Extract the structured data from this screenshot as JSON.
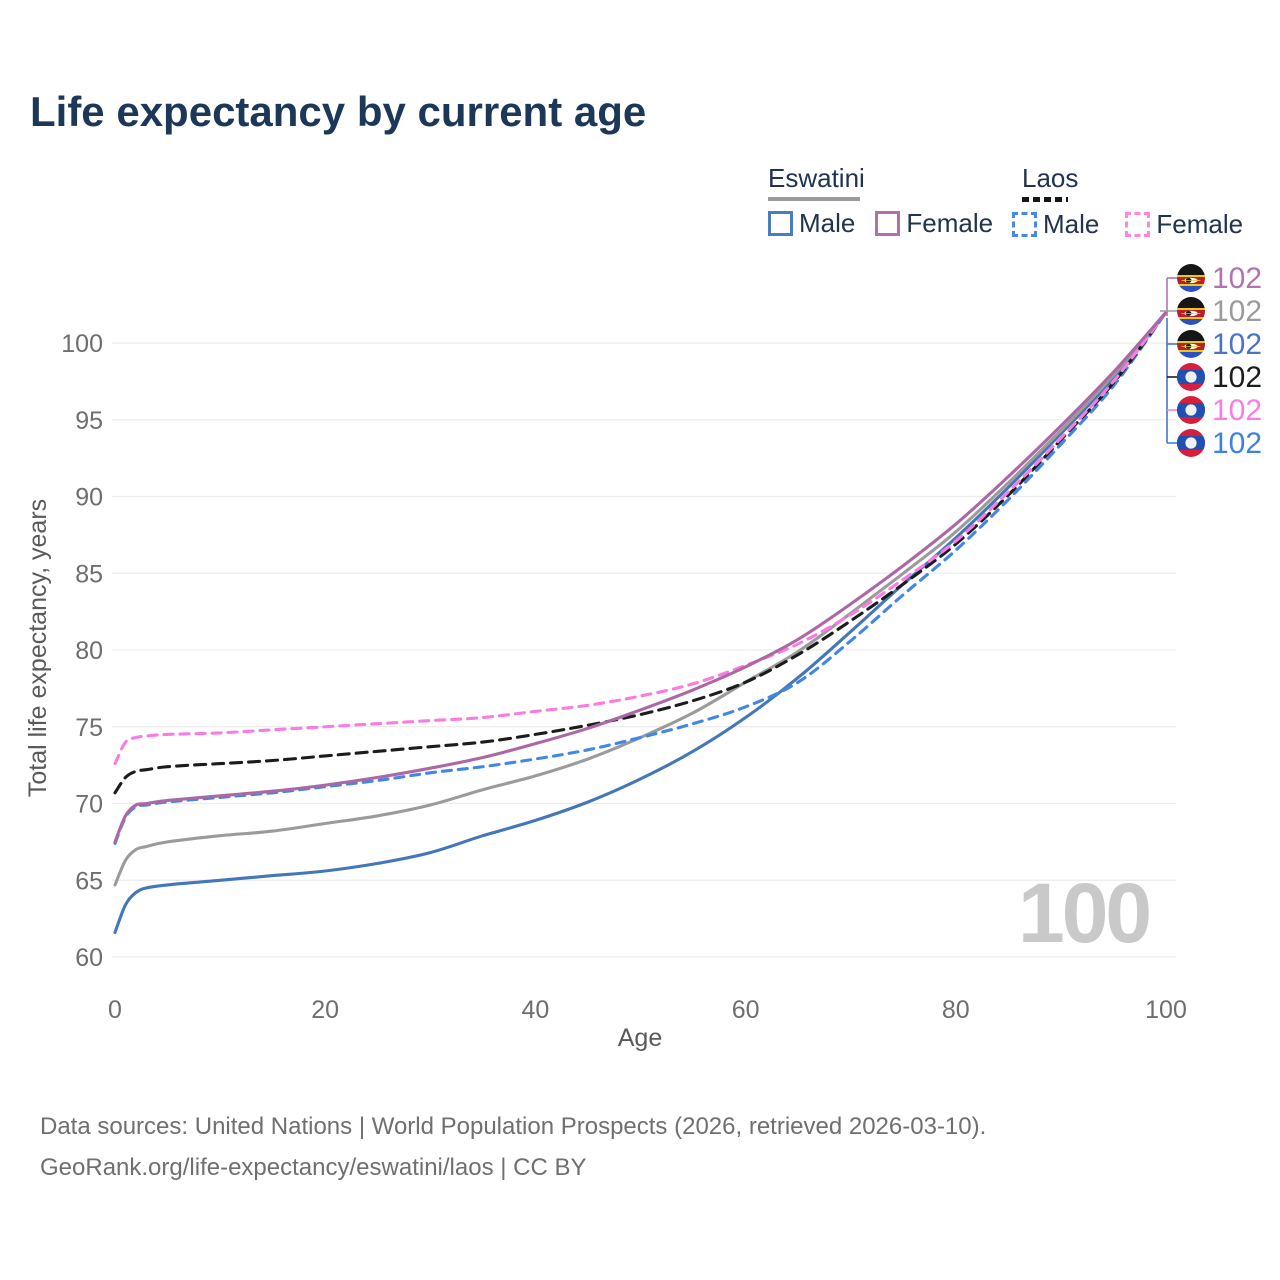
{
  "title": "Life expectancy by current age",
  "legend": {
    "groups": [
      {
        "country": "Eswatini",
        "line_style": "solid",
        "swatch_color": "#9b9b9b",
        "items": [
          {
            "label": "Male",
            "color": "#4a7cc0",
            "dashed": false
          },
          {
            "label": "Female",
            "color": "#b06fae",
            "dashed": false
          }
        ]
      },
      {
        "country": "Laos",
        "line_style": "dashed",
        "swatch_color": "#161616",
        "items": [
          {
            "label": "Male",
            "color": "#4488e8",
            "dashed": true
          },
          {
            "label": "Female",
            "color": "#fd86e8",
            "dashed": true
          }
        ]
      }
    ]
  },
  "chart_data": {
    "type": "line",
    "xlabel": "Age",
    "ylabel": "Total life expectancy, years",
    "xticks": [
      0,
      20,
      40,
      60,
      80,
      100
    ],
    "yticks": [
      60,
      65,
      70,
      75,
      80,
      85,
      90,
      95,
      100
    ],
    "xlim": [
      0,
      100
    ],
    "ylim": [
      58.5,
      103.5
    ],
    "grid": true,
    "watermark": "100",
    "x": [
      0,
      1,
      2,
      3,
      5,
      10,
      15,
      20,
      25,
      30,
      35,
      40,
      45,
      50,
      55,
      60,
      65,
      70,
      75,
      80,
      85,
      90,
      95,
      100
    ],
    "series": [
      {
        "name": "Eswatini Male",
        "country": "Eswatini",
        "sex": "Male",
        "style": "solid",
        "color": "#4477b8",
        "dash": "",
        "values": [
          61.6,
          63.4,
          64.2,
          64.5,
          64.7,
          65.0,
          65.3,
          65.6,
          66.1,
          66.8,
          67.9,
          68.9,
          70.1,
          71.6,
          73.4,
          75.6,
          78.2,
          81.2,
          84.3,
          87.3,
          90.6,
          94.1,
          97.7,
          102
        ]
      },
      {
        "name": "Eswatini",
        "country": "Eswatini",
        "sex": "Both",
        "style": "solid",
        "color": "#9b9b9b",
        "dash": "",
        "values": [
          64.7,
          66.3,
          67.0,
          67.2,
          67.5,
          67.9,
          68.2,
          68.7,
          69.2,
          69.9,
          70.9,
          71.8,
          72.9,
          74.3,
          75.9,
          77.9,
          79.9,
          82.4,
          85.0,
          87.7,
          90.9,
          94.3,
          97.9,
          102
        ]
      },
      {
        "name": "Laos Male",
        "country": "Laos",
        "sex": "Male",
        "style": "dashed",
        "color": "#4287e6",
        "dash": "9 7",
        "values": [
          67.4,
          69.1,
          69.8,
          69.9,
          70.1,
          70.4,
          70.7,
          71.1,
          71.5,
          72.0,
          72.4,
          72.9,
          73.5,
          74.3,
          75.2,
          76.3,
          77.9,
          80.6,
          83.6,
          86.5,
          89.8,
          93.4,
          97.2,
          102
        ]
      },
      {
        "name": "Laos",
        "country": "Laos",
        "sex": "Both",
        "style": "dashed",
        "color": "#1c1c1c",
        "dash": "11 7",
        "values": [
          70.7,
          71.7,
          72.1,
          72.2,
          72.4,
          72.6,
          72.8,
          73.1,
          73.4,
          73.7,
          74.0,
          74.5,
          75.1,
          75.8,
          76.7,
          77.9,
          79.7,
          81.9,
          84.3,
          86.9,
          90.1,
          93.7,
          97.4,
          102
        ]
      },
      {
        "name": "Laos Female",
        "country": "Laos",
        "sex": "Female",
        "style": "dashed",
        "color": "#fb7ce0",
        "dash": "9 7",
        "values": [
          72.6,
          74.0,
          74.3,
          74.4,
          74.5,
          74.6,
          74.8,
          75.0,
          75.2,
          75.4,
          75.6,
          76.0,
          76.4,
          77.0,
          77.8,
          79.0,
          80.4,
          82.3,
          84.6,
          87.1,
          90.3,
          93.8,
          97.5,
          102
        ]
      },
      {
        "name": "Eswatini Female",
        "country": "Eswatini",
        "sex": "Female",
        "style": "solid",
        "color": "#ab68a5",
        "dash": "",
        "values": [
          67.5,
          69.2,
          69.9,
          70.0,
          70.2,
          70.5,
          70.8,
          71.2,
          71.7,
          72.3,
          73.0,
          73.9,
          74.9,
          76.1,
          77.4,
          78.9,
          80.7,
          83.0,
          85.5,
          88.2,
          91.3,
          94.6,
          98.1,
          102
        ]
      }
    ],
    "end_labels": [
      {
        "series": "Eswatini Female",
        "flag": "eswatini",
        "value": "102",
        "color": "#b273ae"
      },
      {
        "series": "Eswatini",
        "flag": "eswatini",
        "value": "102",
        "color": "#9b9b9b"
      },
      {
        "series": "Eswatini Male",
        "flag": "eswatini",
        "value": "102",
        "color": "#4a74c4"
      },
      {
        "series": "Laos",
        "flag": "laos",
        "value": "102",
        "color": "#1c1c1c"
      },
      {
        "series": "Laos Female",
        "flag": "laos",
        "value": "102",
        "color": "#fb7ce5"
      },
      {
        "series": "Laos Male",
        "flag": "laos",
        "value": "102",
        "color": "#3c82e2"
      }
    ]
  },
  "footer": {
    "line1": "Data sources: United Nations | World Population Prospects (2026, retrieved 2026-03-10).",
    "line2": "GeoRank.org/life-expectancy/eswatini/laos | CC BY"
  }
}
